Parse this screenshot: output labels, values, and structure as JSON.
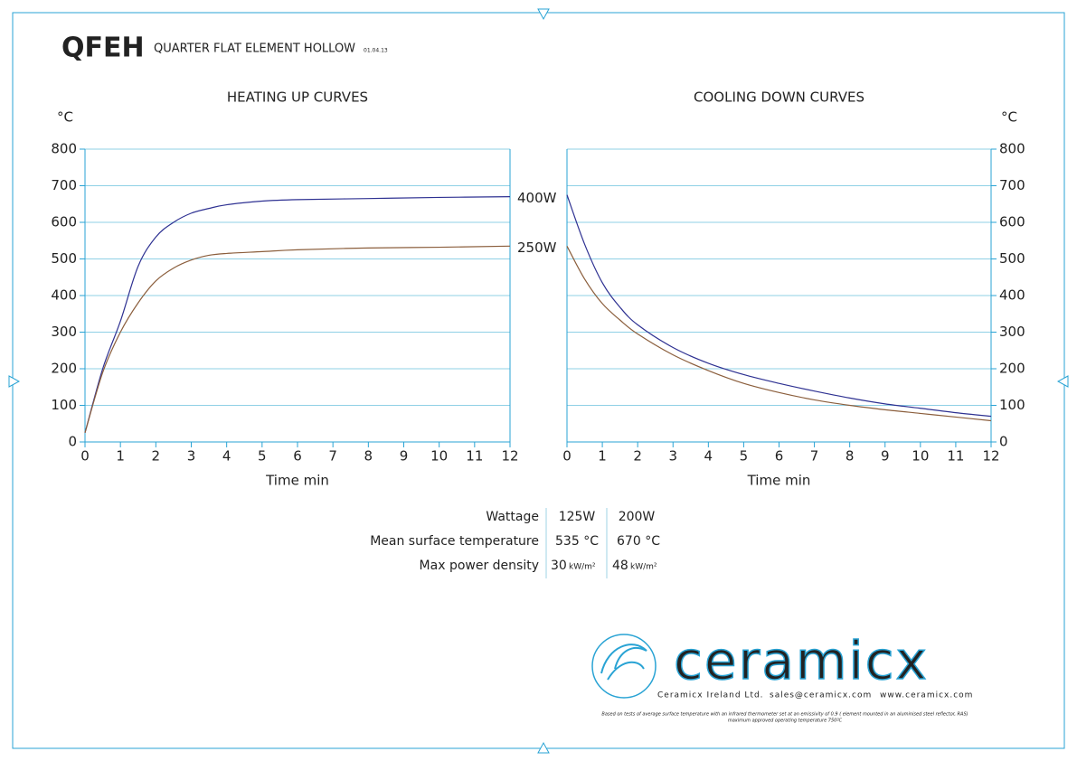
{
  "header": {
    "code": "QFEH",
    "title": "QUARTER FLAT ELEMENT HOLLOW",
    "date": "01.04.13"
  },
  "chart_data": [
    {
      "type": "line",
      "title": "HEATING UP CURVES",
      "x_label": "Time min",
      "y_label": "°C",
      "y_axis_side": "left",
      "xlim": [
        0,
        12
      ],
      "xticks": [
        0,
        1,
        2,
        3,
        4,
        5,
        6,
        7,
        8,
        9,
        10,
        11,
        12
      ],
      "ylim": [
        0,
        800
      ],
      "yticks": [
        0,
        100,
        200,
        300,
        400,
        500,
        600,
        700,
        800
      ],
      "grid": true,
      "x": [
        0,
        0.5,
        1,
        1.5,
        2,
        2.5,
        3,
        3.5,
        4,
        5,
        6,
        8,
        10,
        12
      ],
      "series": [
        {
          "name": "400W",
          "color": "#2e3192",
          "values": [
            25,
            200,
            330,
            480,
            560,
            600,
            625,
            638,
            648,
            658,
            662,
            665,
            668,
            670
          ]
        },
        {
          "name": "250W",
          "color": "#8b5e3c",
          "values": [
            25,
            190,
            300,
            380,
            440,
            475,
            497,
            510,
            515,
            520,
            525,
            530,
            532,
            535
          ]
        }
      ]
    },
    {
      "type": "line",
      "title": "COOLING DOWN CURVES",
      "x_label": "Time min",
      "y_label": "°C",
      "y_axis_side": "right",
      "xlim": [
        0,
        12
      ],
      "xticks": [
        0,
        1,
        2,
        3,
        4,
        5,
        6,
        7,
        8,
        9,
        10,
        11,
        12
      ],
      "ylim": [
        0,
        800
      ],
      "yticks": [
        0,
        100,
        200,
        300,
        400,
        500,
        600,
        700,
        800
      ],
      "grid": true,
      "x": [
        0,
        0.5,
        1,
        1.5,
        2,
        3,
        4,
        5,
        6,
        7,
        8,
        9,
        10,
        11,
        12
      ],
      "series": [
        {
          "color": "#2e3192",
          "values": [
            675,
            540,
            435,
            368,
            320,
            258,
            215,
            184,
            160,
            139,
            120,
            104,
            92,
            80,
            70
          ]
        },
        {
          "color": "#8b5e3c",
          "values": [
            535,
            445,
            378,
            333,
            295,
            238,
            195,
            160,
            135,
            115,
            100,
            88,
            78,
            68,
            58
          ]
        }
      ]
    }
  ],
  "table": {
    "rows": [
      [
        "Wattage",
        "125W",
        "200W"
      ],
      [
        "Mean surface temperature",
        "535 °C",
        "670 °C"
      ],
      [
        "Max power density",
        "30",
        "kW/m²",
        "48",
        "kW/m²"
      ]
    ]
  },
  "footer": {
    "brand": "ceramicx",
    "company": "Ceramicx Ireland Ltd.",
    "email": "sales@ceramicx.com",
    "web": "www.ceramicx.com",
    "note1": "Based on tests of average surface temperature with an infrared thermometer set at an emissivity of 0.9 ( element mounted in an aluminised steel reflector, RAS)",
    "note2": "maximum approved operating temperature 750ºC"
  }
}
